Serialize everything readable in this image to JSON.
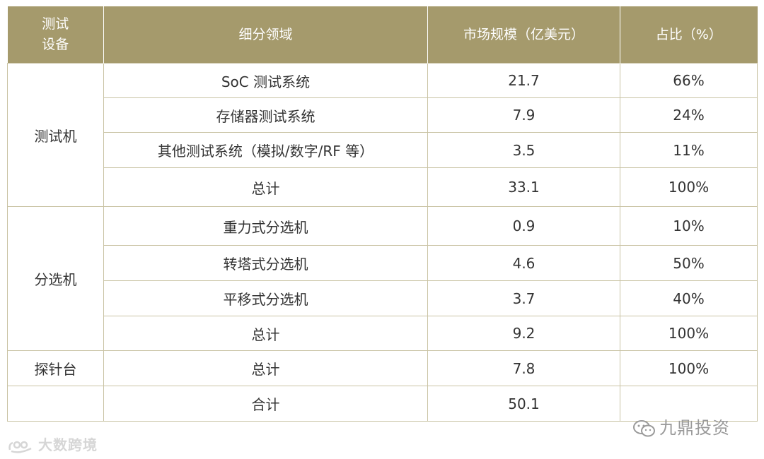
{
  "table": {
    "headers": {
      "device_line1": "测试",
      "device_line2": "设备",
      "segment": "细分领域",
      "market_size": "市场规模（亿美元）",
      "share": "占比（%）"
    },
    "groups": [
      {
        "device": "测试机",
        "rows": [
          {
            "segment": "SoC 测试系统",
            "size": "21.7",
            "share": "66%"
          },
          {
            "segment": "存储器测试系统",
            "size": "7.9",
            "share": "24%"
          },
          {
            "segment": "其他测试系统（模拟/数字/RF 等）",
            "size": "3.5",
            "share": "11%"
          },
          {
            "segment": "总计",
            "size": "33.1",
            "share": "100%"
          }
        ]
      },
      {
        "device": "分选机",
        "rows": [
          {
            "segment": "重力式分选机",
            "size": "0.9",
            "share": "10%"
          },
          {
            "segment": "转塔式分选机",
            "size": "4.6",
            "share": "50%"
          },
          {
            "segment": "平移式分选机",
            "size": "3.7",
            "share": "40%"
          },
          {
            "segment": "总计",
            "size": "9.2",
            "share": "100%"
          }
        ]
      },
      {
        "device": "探针台",
        "rows": [
          {
            "segment": "总计",
            "size": "7.8",
            "share": "100%"
          }
        ]
      }
    ],
    "grand_total": {
      "device": "",
      "segment": "合计",
      "size": "50.1",
      "share": ""
    }
  },
  "watermarks": {
    "left_text": "大数跨境",
    "right_text": "九鼎投资"
  }
}
